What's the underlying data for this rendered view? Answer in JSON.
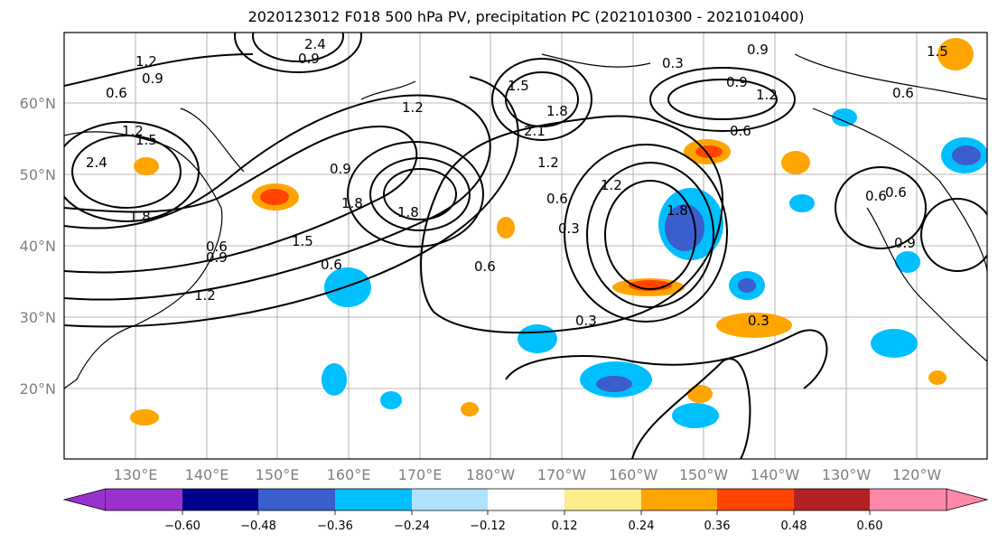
{
  "title": "2020123012 F018 500 hPa PV, precipitation PC (2021010300 - 2021010400)",
  "lat_labels": [
    "60°N",
    "50°N",
    "40°N",
    "30°N",
    "20°N"
  ],
  "lon_labels": [
    "130°E",
    "140°E",
    "150°E",
    "160°E",
    "170°E",
    "180°W",
    "170°W",
    "160°W",
    "150°W",
    "140°W",
    "130°W",
    "120°W"
  ],
  "contour_labels": [
    "1.2",
    "0.9",
    "0.6",
    "2.4",
    "1.5",
    "2.4",
    "1.8",
    "1.2",
    "0.9",
    "1.8",
    "0.6",
    "0.3",
    "1.8",
    "0.6",
    "0.9",
    "0.6",
    "0.3",
    "0.9",
    "1.2",
    "0.6",
    "0.3",
    "0.6",
    "0.9",
    "1.5",
    "0.6",
    "0.3",
    "1.2",
    "0.6",
    "2.1",
    "1.5",
    "1.8",
    "1.2",
    "0.9",
    "0.6",
    "1.8",
    "0.9",
    "1.2",
    "1.5",
    "1.2"
  ],
  "colorbar": {
    "ticks": [
      "−0.60",
      "−0.48",
      "−0.36",
      "−0.24",
      "−0.12",
      "0.12",
      "0.24",
      "0.36",
      "0.48",
      "0.60"
    ],
    "colors": [
      "#9932cc",
      "#00008b",
      "#3a5fcd",
      "#00bfff",
      "#b0e2ff",
      "#ffffff",
      "#ffec8b",
      "#ffa500",
      "#ff4500",
      "#b22222",
      "#ff88aa"
    ]
  }
}
